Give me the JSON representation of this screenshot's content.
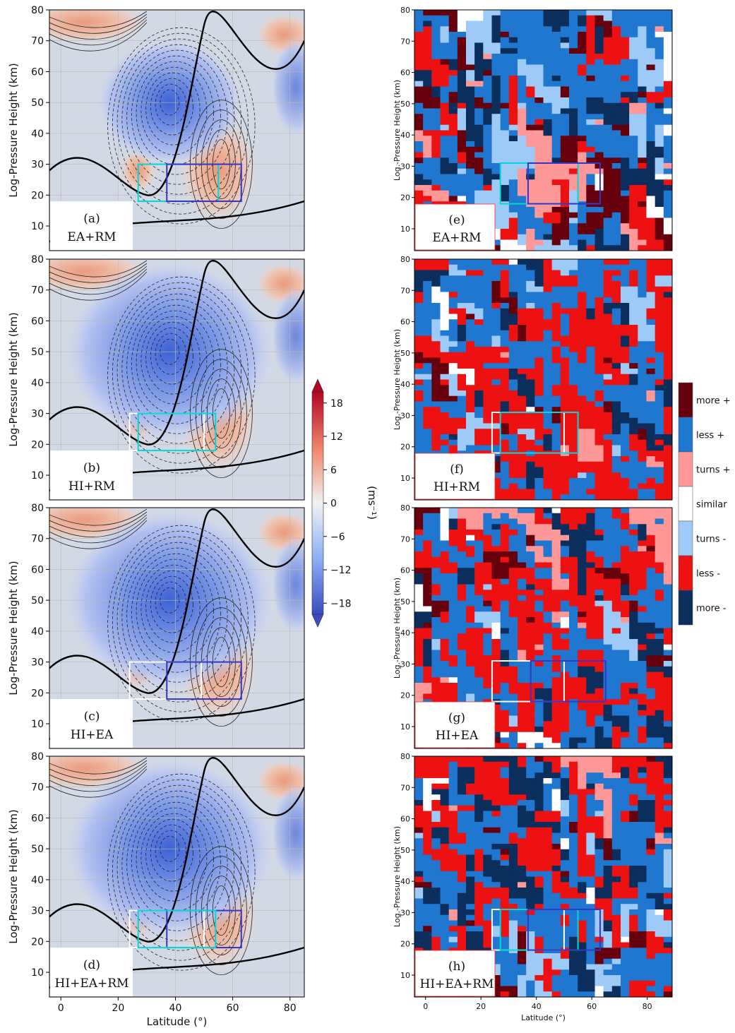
{
  "chart_data": [
    {
      "type": "heatmap",
      "subtype": "contour",
      "panels": [
        {
          "letter": "(a)",
          "label": "EA+RM"
        },
        {
          "letter": "(b)",
          "label": "HI+RM"
        },
        {
          "letter": "(c)",
          "label": "HI+EA"
        },
        {
          "letter": "(d)",
          "label": "HI+EA+RM"
        }
      ],
      "xlabel": "Latitude (°)",
      "ylabel": "Log-Pressure Height (km)",
      "xticks": [
        "0",
        "20",
        "40",
        "60",
        "80"
      ],
      "yticks": [
        "10",
        "20",
        "30",
        "40",
        "50",
        "60",
        "70",
        "80"
      ],
      "xlim": [
        -4,
        85
      ],
      "ylim": [
        2,
        80
      ],
      "grid": true,
      "colorbar": {
        "label": "(ms⁻¹)",
        "ticks": [
          "18",
          "12",
          "6",
          "0",
          "−6",
          "−12",
          "−18"
        ],
        "range": [
          -20,
          20
        ],
        "colors": [
          "#3b4cc0",
          "#ffffff",
          "#b40426"
        ]
      }
    },
    {
      "type": "heatmap",
      "subtype": "categorical",
      "panels": [
        {
          "letter": "(e)",
          "label": "EA+RM"
        },
        {
          "letter": "(f)",
          "label": "HI+RM"
        },
        {
          "letter": "(g)",
          "label": "HI+EA"
        },
        {
          "letter": "(h)",
          "label": "HI+EA+RM"
        }
      ],
      "xlabel": "Latitude (°)",
      "ylabel": "Log.-Pressure Height (km)",
      "xticks": [
        "0",
        "20",
        "40",
        "60",
        "80"
      ],
      "yticks": [
        "10",
        "20",
        "30",
        "40",
        "50",
        "60",
        "70",
        "80"
      ],
      "legend": {
        "placement": "right",
        "entries": [
          {
            "label": "more +",
            "color": "#67000d"
          },
          {
            "label": "less +",
            "color": "#1f77d0"
          },
          {
            "label": "turns +",
            "color": "#ff9999"
          },
          {
            "label": "similar",
            "color": "#ffffff"
          },
          {
            "label": "turns -",
            "color": "#9ecaf7"
          },
          {
            "label": "less -",
            "color": "#ee1111"
          },
          {
            "label": "more -",
            "color": "#0b2e5c"
          }
        ]
      }
    }
  ]
}
